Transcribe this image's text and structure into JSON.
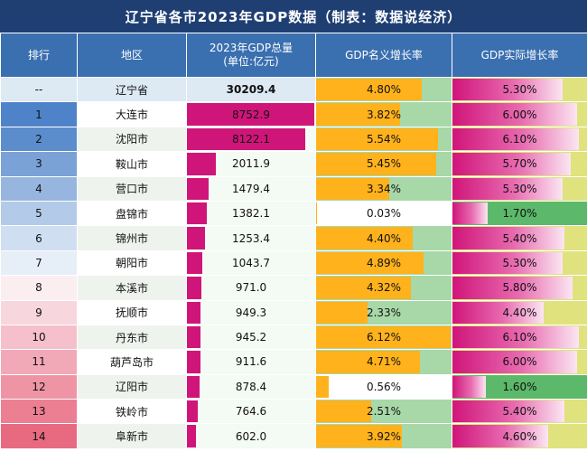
{
  "title": "辽宁省各市2023年GDP数据（制表：数据说经济）",
  "headers": {
    "rank": "排行",
    "region": "地区",
    "gdp": "2023年GDP总量\n(单位:亿元)",
    "nominal": "GDP名义增长率",
    "real": "GDP实际增长率"
  },
  "colors": {
    "title_bg": "#1f3f73",
    "header_bg": "#3a6fb0",
    "gdp_bar": "#d0157a",
    "nominal_bar": "#ffb21c",
    "nominal_bg": "#a8d8a8",
    "real_bg": "#e0e27e",
    "real_low_bg": "#5cb86a"
  },
  "gdp_max": 8752.9,
  "nominal_max": 6.12,
  "real_max": 6.1,
  "rows": [
    {
      "rank": "--",
      "region": "辽宁省",
      "gdp": "30209.4",
      "gdp_value": 0,
      "nominal": "4.80%",
      "nominal_value": 4.8,
      "real": "5.30%",
      "real_value": 5.3,
      "rank_bg": "#dde9f3"
    },
    {
      "rank": "1",
      "region": "大连市",
      "gdp": "8752.9",
      "gdp_value": 8752.9,
      "nominal": "3.82%",
      "nominal_value": 3.82,
      "real": "6.00%",
      "real_value": 6.0,
      "rank_bg": "#4f83c9"
    },
    {
      "rank": "2",
      "region": "沈阳市",
      "gdp": "8122.1",
      "gdp_value": 8122.1,
      "nominal": "5.54%",
      "nominal_value": 5.54,
      "real": "6.10%",
      "real_value": 6.1,
      "rank_bg": "#5b8dcd"
    },
    {
      "rank": "3",
      "region": "鞍山市",
      "gdp": "2011.9",
      "gdp_value": 2011.9,
      "nominal": "5.45%",
      "nominal_value": 5.45,
      "real": "5.70%",
      "real_value": 5.7,
      "rank_bg": "#7aa2d6"
    },
    {
      "rank": "4",
      "region": "营口市",
      "gdp": "1479.4",
      "gdp_value": 1479.4,
      "nominal": "3.34%",
      "nominal_value": 3.34,
      "real": "5.30%",
      "real_value": 5.3,
      "rank_bg": "#96b6e0"
    },
    {
      "rank": "5",
      "region": "盘锦市",
      "gdp": "1382.1",
      "gdp_value": 1382.1,
      "nominal": "0.03%",
      "nominal_value": 0.03,
      "real": "1.70%",
      "real_value": 1.7,
      "rank_bg": "#b3cbe9"
    },
    {
      "rank": "6",
      "region": "锦州市",
      "gdp": "1253.4",
      "gdp_value": 1253.4,
      "nominal": "4.40%",
      "nominal_value": 4.4,
      "real": "5.40%",
      "real_value": 5.4,
      "rank_bg": "#cfdef1"
    },
    {
      "rank": "7",
      "region": "朝阳市",
      "gdp": "1043.7",
      "gdp_value": 1043.7,
      "nominal": "4.89%",
      "nominal_value": 4.89,
      "real": "5.30%",
      "real_value": 5.3,
      "rank_bg": "#e6eef8"
    },
    {
      "rank": "8",
      "region": "本溪市",
      "gdp": "971.0",
      "gdp_value": 971.0,
      "nominal": "4.32%",
      "nominal_value": 4.32,
      "real": "5.80%",
      "real_value": 5.8,
      "rank_bg": "#fbeef1"
    },
    {
      "rank": "9",
      "region": "抚顺市",
      "gdp": "949.3",
      "gdp_value": 949.3,
      "nominal": "2.33%",
      "nominal_value": 2.33,
      "real": "4.40%",
      "real_value": 4.4,
      "rank_bg": "#f8d6de"
    },
    {
      "rank": "10",
      "region": "丹东市",
      "gdp": "945.2",
      "gdp_value": 945.2,
      "nominal": "6.12%",
      "nominal_value": 6.12,
      "real": "6.10%",
      "real_value": 6.1,
      "rank_bg": "#f5c0cb"
    },
    {
      "rank": "11",
      "region": "葫芦岛市",
      "gdp": "911.6",
      "gdp_value": 911.6,
      "nominal": "4.71%",
      "nominal_value": 4.71,
      "real": "6.00%",
      "real_value": 6.0,
      "rank_bg": "#f2a9b7"
    },
    {
      "rank": "12",
      "region": "辽阳市",
      "gdp": "878.4",
      "gdp_value": 878.4,
      "nominal": "0.56%",
      "nominal_value": 0.56,
      "real": "1.60%",
      "real_value": 1.6,
      "rank_bg": "#ef94a5"
    },
    {
      "rank": "13",
      "region": "铁岭市",
      "gdp": "764.6",
      "gdp_value": 764.6,
      "nominal": "2.51%",
      "nominal_value": 2.51,
      "real": "5.40%",
      "real_value": 5.4,
      "rank_bg": "#ec7f92"
    },
    {
      "rank": "14",
      "region": "阜新市",
      "gdp": "602.0",
      "gdp_value": 602.0,
      "nominal": "3.92%",
      "nominal_value": 3.92,
      "real": "4.60%",
      "real_value": 4.6,
      "rank_bg": "#e86a80"
    }
  ]
}
